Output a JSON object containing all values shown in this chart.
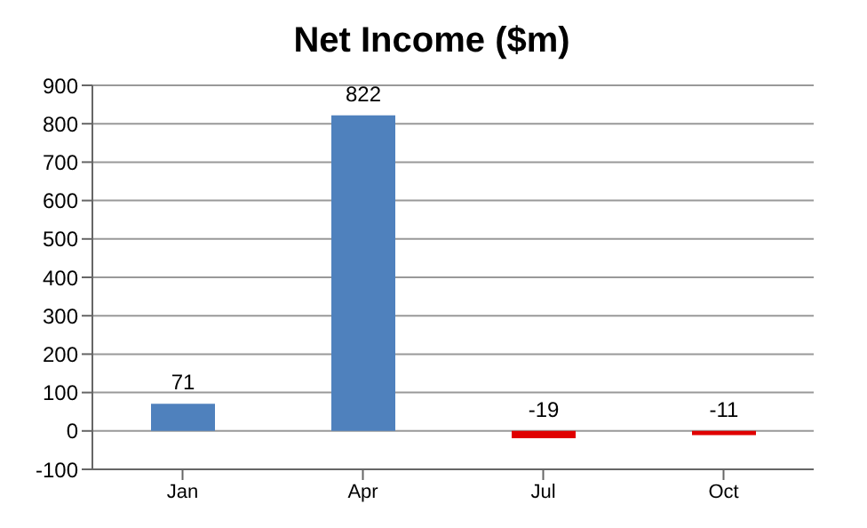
{
  "chart_data": {
    "type": "bar",
    "title": "Net Income ($m)",
    "categories": [
      "Jan",
      "Apr",
      "Jul",
      "Oct"
    ],
    "values": [
      71,
      822,
      -19,
      -11
    ],
    "colors": [
      "#4f81bd",
      "#4f81bd",
      "#e00000",
      "#e00000"
    ],
    "ylim": [
      -100,
      900
    ],
    "yticks": [
      -100,
      0,
      100,
      200,
      300,
      400,
      500,
      600,
      700,
      800,
      900
    ],
    "grid": "y",
    "data_labels": true
  }
}
